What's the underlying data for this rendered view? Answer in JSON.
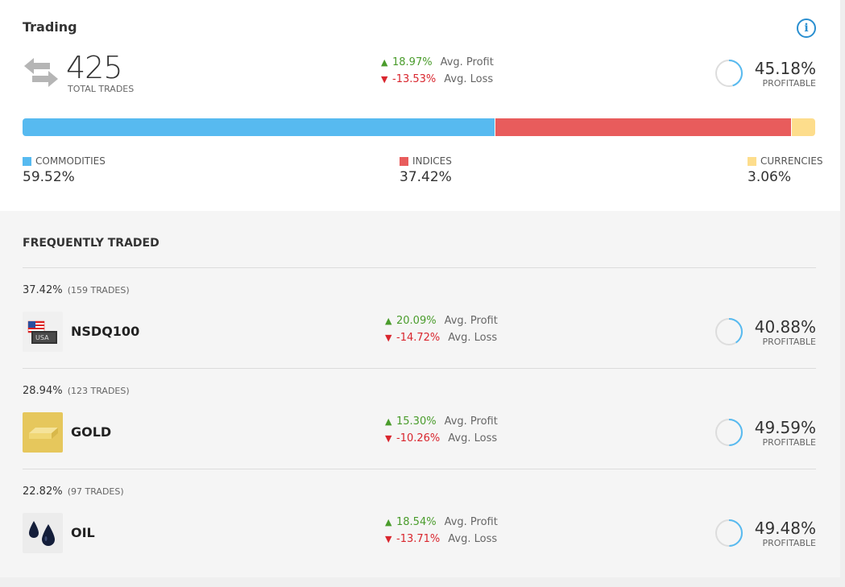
{
  "summary": {
    "title": "Trading",
    "total_trades": "425",
    "total_trades_label": "TOTAL TRADES",
    "avg_profit": "18.97%",
    "avg_profit_label": "Avg. Profit",
    "avg_loss": "-13.53%",
    "avg_loss_label": "Avg. Loss",
    "profitable_pct": "45.18%",
    "profitable_fraction": 0.4518,
    "profitable_label": "PROFITABLE"
  },
  "breakdown": [
    {
      "label": "COMMODITIES",
      "value": "59.52%",
      "share": 59.52,
      "color": "#57baf0"
    },
    {
      "label": "INDICES",
      "value": "37.42%",
      "share": 37.42,
      "color": "#e85c5c"
    },
    {
      "label": "CURRENCIES",
      "value": "3.06%",
      "share": 3.06,
      "color": "#fddd8c"
    }
  ],
  "frequently_traded": {
    "title": "FREQUENTLY TRADED",
    "items": [
      {
        "share": "37.42%",
        "trades": "(159 TRADES)",
        "name": "NSDQ100",
        "icon": "usa-flag-icon",
        "avg_profit": "20.09%",
        "avg_profit_label": "Avg. Profit",
        "avg_loss": "-14.72%",
        "avg_loss_label": "Avg. Loss",
        "profitable_pct": "40.88%",
        "profitable_fraction": 0.4088,
        "profitable_label": "PROFITABLE"
      },
      {
        "share": "28.94%",
        "trades": "(123 TRADES)",
        "name": "GOLD",
        "icon": "gold-bar-icon",
        "avg_profit": "15.30%",
        "avg_profit_label": "Avg. Profit",
        "avg_loss": "-10.26%",
        "avg_loss_label": "Avg. Loss",
        "profitable_pct": "49.59%",
        "profitable_fraction": 0.4959,
        "profitable_label": "PROFITABLE"
      },
      {
        "share": "22.82%",
        "trades": "(97 TRADES)",
        "name": "OIL",
        "icon": "oil-drops-icon",
        "avg_profit": "18.54%",
        "avg_profit_label": "Avg. Profit",
        "avg_loss": "-13.71%",
        "avg_loss_label": "Avg. Loss",
        "profitable_pct": "49.48%",
        "profitable_fraction": 0.4948,
        "profitable_label": "PROFITABLE"
      }
    ]
  },
  "colors": {
    "profit": "#4a9c2c",
    "loss": "#d9262e",
    "ring": "#57baf0",
    "ring_track": "#dddddd",
    "info": "#2a8fd0"
  }
}
